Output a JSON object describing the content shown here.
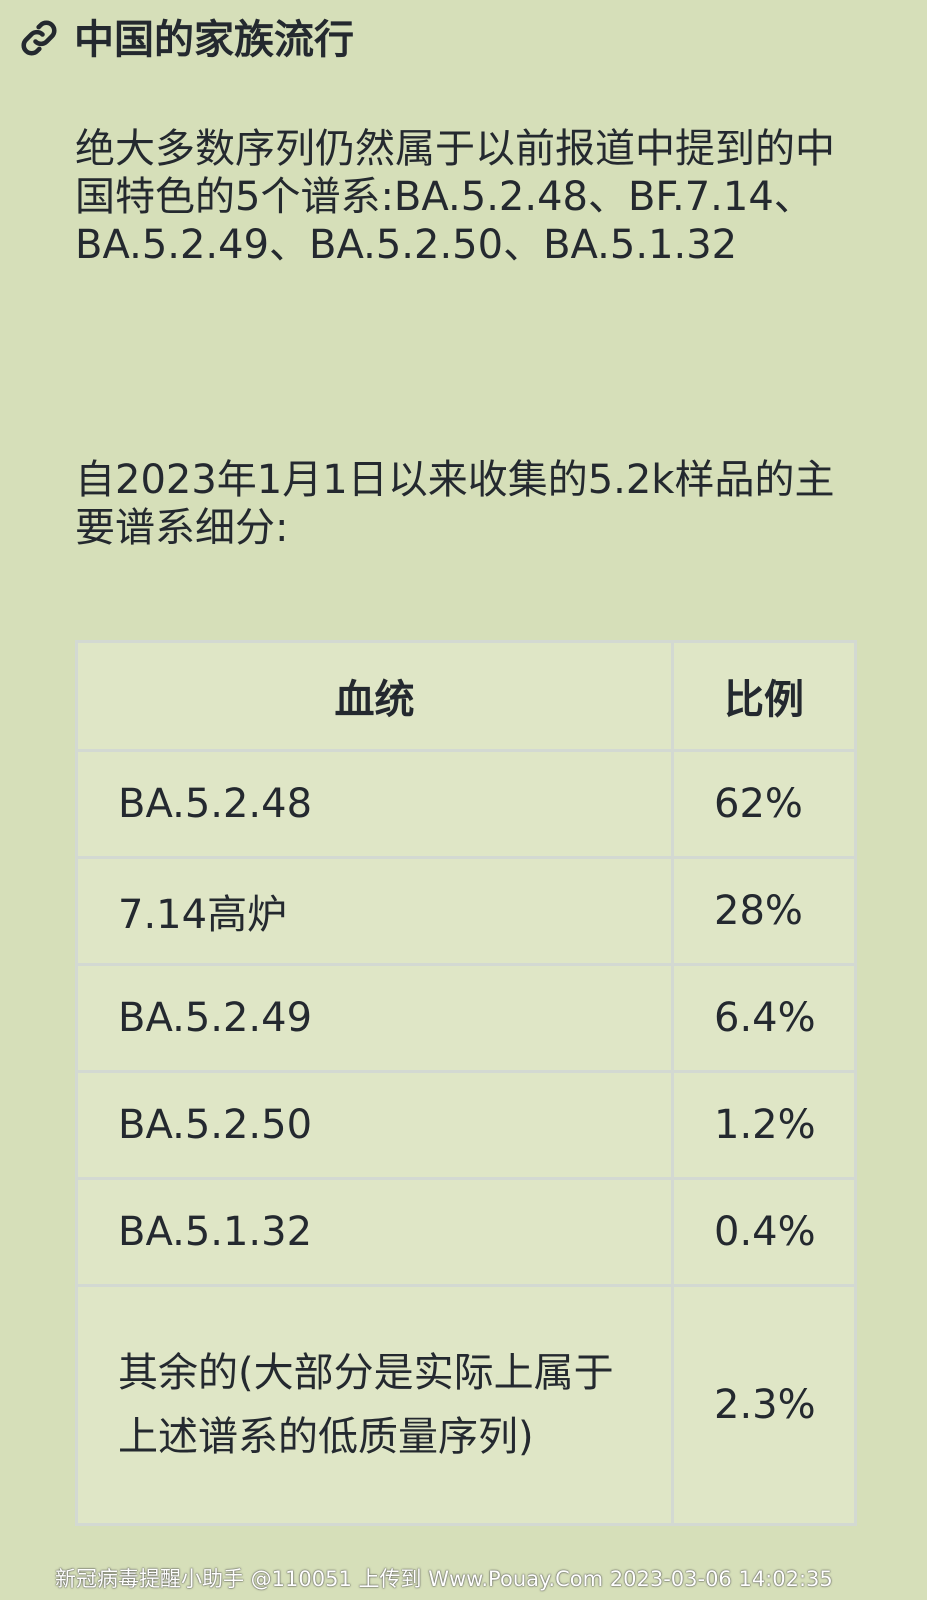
{
  "heading": {
    "icon": "link-icon",
    "title": "中国的家族流行"
  },
  "paragraphs": [
    "绝大多数序列仍然属于以前报道中提到的中国特色的5个谱系:BA.5.2.48、BF.7.14、BA.5.2.49、BA.5.2.50、BA.5.1.32",
    "自2023年1月1日以来收集的5.2k样品的主要谱系细分:"
  ],
  "table": {
    "headers": [
      "血统",
      "比例"
    ],
    "rows": [
      [
        "BA.5.2.48",
        "62%"
      ],
      [
        "7.14高炉",
        "28%"
      ],
      [
        "BA.5.2.49",
        "6.4%"
      ],
      [
        "BA.5.2.50",
        "1.2%"
      ],
      [
        "BA.5.1.32",
        "0.4%"
      ],
      [
        "其余的(大部分是实际上属于上述谱系的低质量序列)",
        "2.3%"
      ]
    ]
  },
  "watermark": "新冠病毒提醒小助手 @110051 上传到 Www.Pouay.Com 2023-03-06 14:02:35"
}
